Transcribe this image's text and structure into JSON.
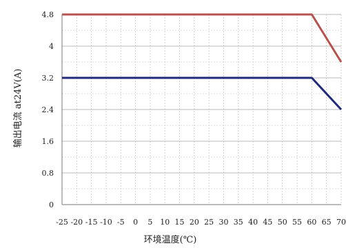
{
  "chart_data": {
    "type": "line",
    "xlabel": "环境温度(℃)",
    "ylabel": "输出电流 at24V(A)",
    "x_ticks": [
      -25,
      -20,
      -15,
      -10,
      -5,
      0,
      5,
      10,
      15,
      20,
      25,
      30,
      35,
      40,
      45,
      50,
      55,
      60,
      65,
      70
    ],
    "x_tick_labels": [
      "-25",
      "-20",
      "-15",
      "-10",
      "-5",
      "0",
      "5",
      "10",
      "15",
      "20",
      "25",
      "30",
      "35",
      "40",
      "45",
      "50",
      "55",
      "60",
      "65",
      "70"
    ],
    "y_ticks": [
      0,
      0.8,
      1.6,
      2.4,
      3.2,
      4,
      4.8
    ],
    "y_tick_labels": [
      "0",
      "0.8",
      "1.6",
      "2.4",
      "3.2",
      "4",
      "4.8"
    ],
    "xlim": [
      -25,
      70
    ],
    "ylim": [
      0,
      4.8
    ],
    "grid": true,
    "series": [
      {
        "color": "#b5524e",
        "x": [
          -25,
          60,
          70
        ],
        "y": [
          4.8,
          4.8,
          3.6
        ]
      },
      {
        "color": "#1f2a78",
        "x": [
          -25,
          60,
          70
        ],
        "y": [
          3.2,
          3.2,
          2.4
        ]
      }
    ]
  }
}
